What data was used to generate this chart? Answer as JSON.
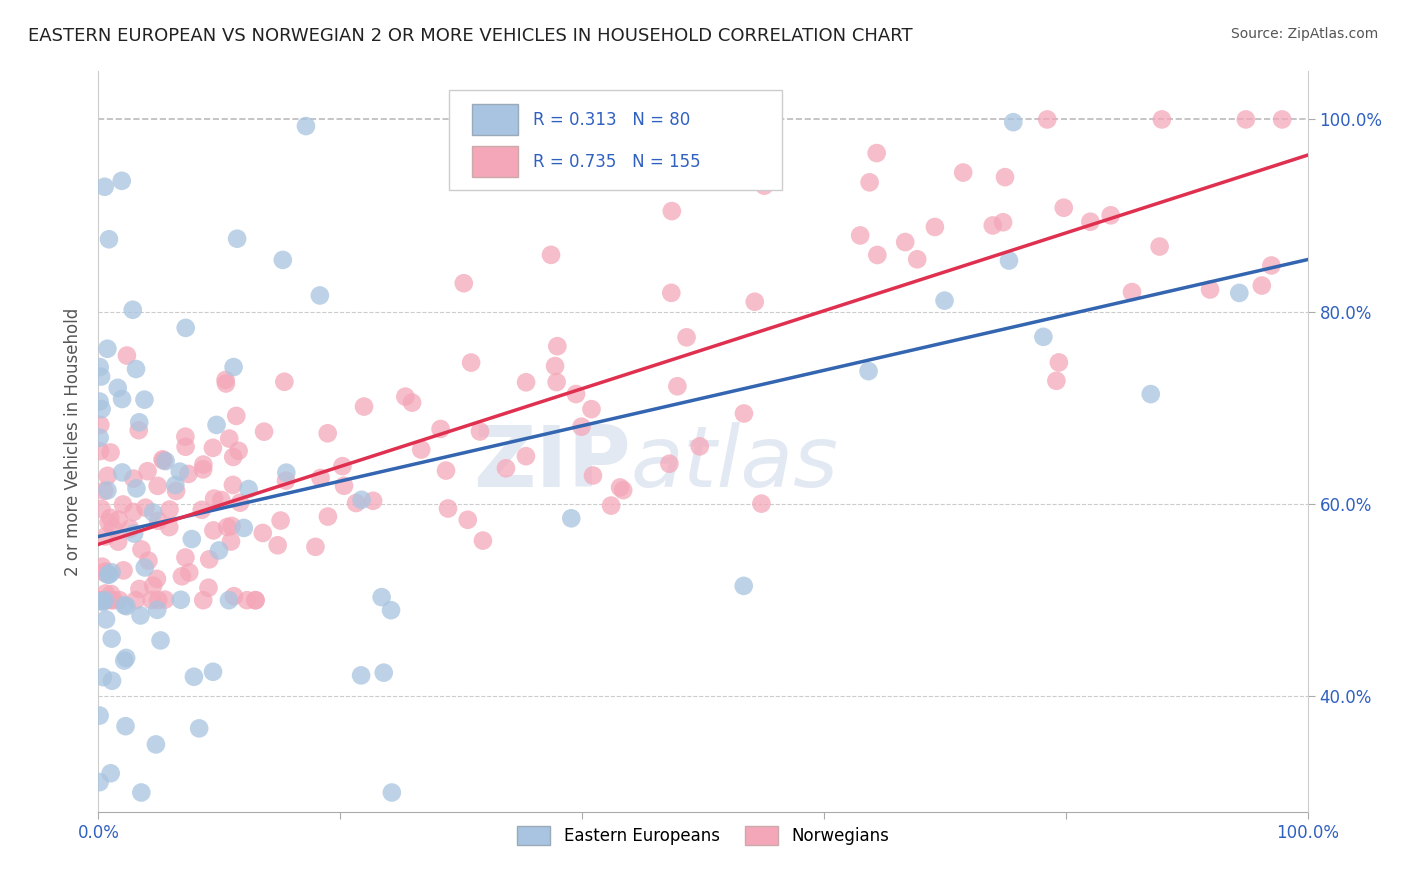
{
  "title": "EASTERN EUROPEAN VS NORWEGIAN 2 OR MORE VEHICLES IN HOUSEHOLD CORRELATION CHART",
  "source": "Source: ZipAtlas.com",
  "ylabel": "2 or more Vehicles in Household",
  "legend_label1": "Eastern Europeans",
  "legend_label2": "Norwegians",
  "r1": 0.313,
  "n1": 80,
  "r2": 0.735,
  "n2": 155,
  "color1": "#a8c4e0",
  "color2": "#f4a7b9",
  "line_color1": "#3465b0",
  "line_color2": "#e03050",
  "xlim": [
    0.0,
    1.0
  ],
  "ylim": [
    0.28,
    1.05
  ],
  "xtick_labels": [
    "0.0%",
    "",
    "",
    "",
    "",
    "100.0%"
  ],
  "xtick_vals": [
    0.0,
    0.2,
    0.4,
    0.6,
    0.8,
    1.0
  ],
  "ytick_labels": [
    "40.0%",
    "60.0%",
    "80.0%",
    "100.0%"
  ],
  "ytick_vals": [
    0.4,
    0.6,
    0.8,
    1.0
  ],
  "watermark_zip": "ZIP",
  "watermark_atlas": "atlas",
  "background_color": "#ffffff",
  "grid_color": "#cccccc",
  "ee_seed": 42,
  "no_seed": 99
}
